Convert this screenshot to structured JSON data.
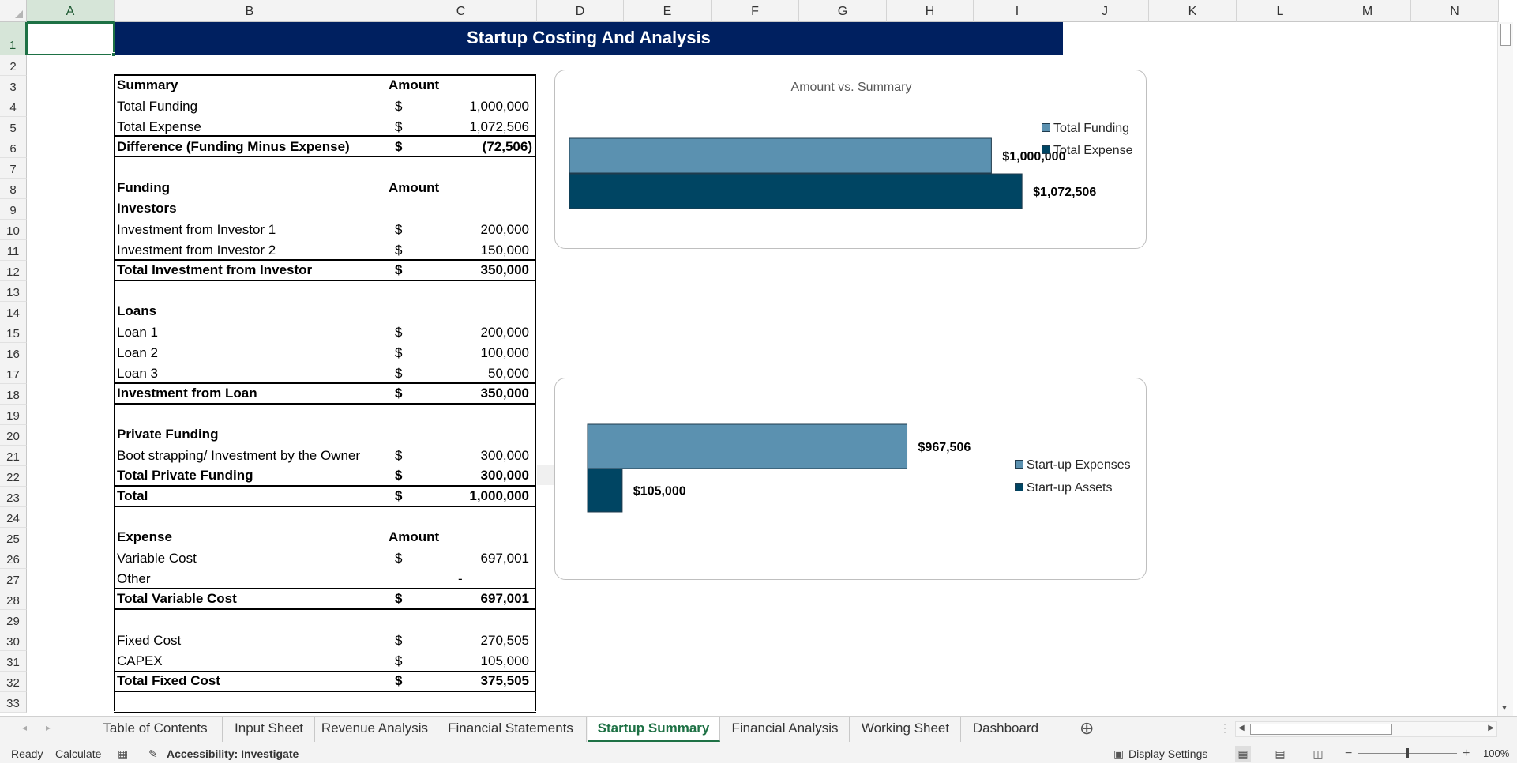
{
  "columns": [
    "A",
    "B",
    "C",
    "D",
    "E",
    "F",
    "G",
    "H",
    "I",
    "J",
    "K",
    "L",
    "M",
    "N"
  ],
  "rows": [
    "1",
    "2",
    "3",
    "4",
    "5",
    "6",
    "7",
    "8",
    "9",
    "10",
    "11",
    "12",
    "13",
    "14",
    "15",
    "16",
    "17",
    "18",
    "19",
    "20",
    "21",
    "22",
    "23",
    "24",
    "25",
    "26",
    "27",
    "28",
    "29",
    "30",
    "31",
    "32",
    "33"
  ],
  "sheet": {
    "title": "Startup Costing And Analysis",
    "summary": {
      "header_label": "Summary",
      "header_amount": "Amount",
      "total_funding_label": "Total Funding",
      "total_funding_value": "1,000,000",
      "total_expense_label": "Total Expense",
      "total_expense_value": "1,072,506",
      "difference_label": "Difference (Funding Minus Expense)",
      "difference_value": "(72,506)"
    },
    "funding": {
      "header_label": "Funding",
      "header_amount": "Amount",
      "investors_label": "Investors",
      "investor1_label": "Investment from Investor 1",
      "investor1_value": "200,000",
      "investor2_label": "Investment from Investor 2",
      "investor2_value": "150,000",
      "total_investor_label": "Total Investment from Investor",
      "total_investor_value": "350,000"
    },
    "loans": {
      "header_label": "Loans",
      "loan1_label": "Loan 1",
      "loan1_value": "200,000",
      "loan2_label": "Loan 2",
      "loan2_value": "100,000",
      "loan3_label": "Loan 3",
      "loan3_value": "50,000",
      "total_label": "Investment from Loan",
      "total_value": "350,000"
    },
    "private": {
      "header_label": "Private Funding",
      "boot_label": "Boot strapping/ Investment by the Owner",
      "boot_value": "300,000",
      "total_private_label": "Total Private Funding",
      "total_private_value": "300,000",
      "grand_total_label": "Total",
      "grand_total_value": "1,000,000"
    },
    "expense": {
      "header_label": "Expense",
      "header_amount": "Amount",
      "variable_label": "Variable Cost",
      "variable_value": "697,001",
      "other_label": "Other",
      "other_value": "-",
      "total_variable_label": "Total Variable Cost",
      "total_variable_value": "697,001",
      "fixed_label": "Fixed Cost",
      "fixed_value": "270,505",
      "capex_label": "CAPEX",
      "capex_value": "105,000",
      "total_fixed_label": "Total Fixed Cost",
      "total_fixed_value": "375,505"
    },
    "currency_symbol": "$"
  },
  "chart_data": [
    {
      "type": "bar",
      "orientation": "horizontal",
      "title": "Amount vs. Summary",
      "series": [
        {
          "name": "Total Funding",
          "value": 1000000,
          "label": "$1,000,000",
          "color": "#5b91b0"
        },
        {
          "name": "Total Expense",
          "value": 1072506,
          "label": "$1,072,506",
          "color": "#004563"
        }
      ],
      "xlim": [
        0,
        1250000
      ],
      "legend": "right",
      "grid": false
    },
    {
      "type": "bar",
      "orientation": "horizontal",
      "title": "",
      "series": [
        {
          "name": "Start-up Expenses",
          "value": 967506,
          "label": "$967,506",
          "color": "#5b91b0"
        },
        {
          "name": "Start-up Assets",
          "value": 105000,
          "label": "$105,000",
          "color": "#004563"
        }
      ],
      "xlim": [
        0,
        1160000
      ],
      "legend": "right",
      "grid": false
    }
  ],
  "tabs": {
    "items": [
      "Table of Contents",
      "Input Sheet",
      "Revenue Analysis",
      "Financial Statements",
      "Startup Summary",
      "Financial Analysis",
      "Working Sheet",
      "Dashboard"
    ],
    "active": "Startup Summary",
    "add_symbol": "⊕"
  },
  "status": {
    "ready": "Ready",
    "calculate": "Calculate",
    "accessibility": "Accessibility: Investigate",
    "display_settings": "Display Settings",
    "zoom": "100%"
  }
}
